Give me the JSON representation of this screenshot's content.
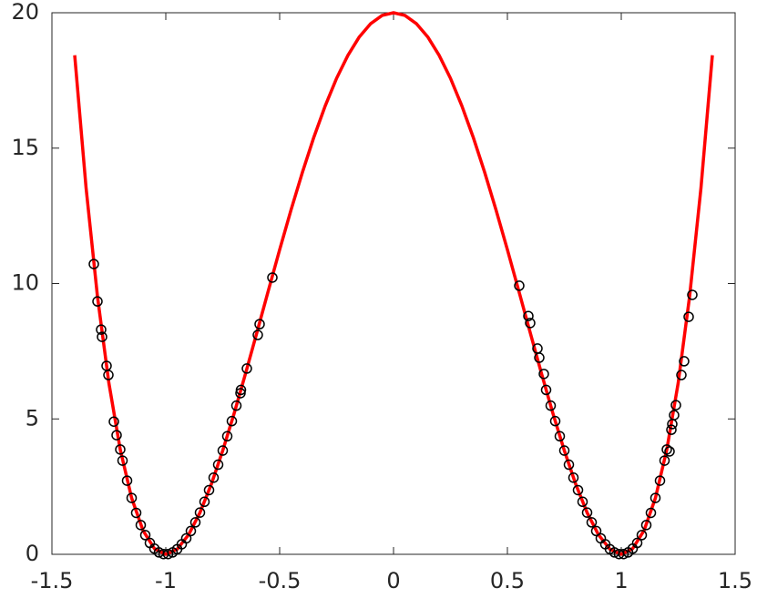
{
  "chart_data": {
    "type": "line",
    "xlim": [
      -1.5,
      1.5
    ],
    "xticks": [
      -1.5,
      -1,
      -0.5,
      0,
      0.5,
      1,
      1.5
    ],
    "ylim": [
      0,
      20
    ],
    "yticks": [
      0,
      5,
      10,
      15,
      20
    ],
    "grid": false,
    "series": [
      {
        "type": "line",
        "color": "#ff0000",
        "x": [
          -1.4,
          -1.35,
          -1.3,
          -1.25,
          -1.2,
          -1.15,
          -1.1,
          -1.05,
          -1,
          -0.95,
          -0.9,
          -0.85,
          -0.8,
          -0.75,
          -0.7,
          -0.65,
          -0.6,
          -0.55,
          -0.5,
          -0.45,
          -0.4,
          -0.35,
          -0.3,
          -0.25,
          -0.2,
          -0.15,
          -0.1,
          -0.05,
          0,
          0.05,
          0.1,
          0.15,
          0.2,
          0.25,
          0.3,
          0.35,
          0.4,
          0.45,
          0.5,
          0.55,
          0.6,
          0.65,
          0.7,
          0.75,
          0.8,
          0.85,
          0.9,
          0.95,
          1,
          1.05,
          1.1,
          1.15,
          1.2,
          1.25,
          1.3,
          1.35,
          1.4
        ],
        "values": [
          18.43,
          13.53,
          9.52,
          6.33,
          3.87,
          2.08,
          0.88,
          0.21,
          0,
          0.19,
          0.72,
          1.54,
          2.59,
          3.83,
          5.2,
          6.67,
          8.19,
          9.73,
          11.25,
          12.72,
          14.11,
          15.4,
          16.56,
          17.58,
          18.43,
          19.11,
          19.6,
          19.9,
          20,
          19.9,
          19.6,
          19.11,
          18.43,
          17.58,
          16.56,
          15.4,
          14.11,
          12.72,
          11.25,
          9.73,
          8.19,
          6.67,
          5.2,
          3.83,
          2.59,
          1.54,
          0.72,
          0.19,
          0,
          0.21,
          0.88,
          2.08,
          3.87,
          6.33,
          9.52,
          13.53,
          18.43
        ]
      },
      {
        "type": "scatter",
        "color": "#000000",
        "x": [
          0.67,
          0.69,
          0.71,
          0.73,
          0.75,
          0.77,
          0.79,
          0.81,
          0.83,
          0.85,
          0.87,
          0.89,
          0.91,
          0.93,
          0.95,
          0.97,
          0.99,
          1.01,
          1.03,
          1.05,
          1.07,
          1.09,
          1.11,
          1.13,
          1.15,
          1.17,
          1.19,
          1.2,
          -0.67,
          -0.69,
          -0.71,
          -0.73,
          -0.75,
          -0.77,
          -0.79,
          -0.81,
          -0.83,
          -0.85,
          -0.87,
          -0.89,
          -0.91,
          -0.93,
          -0.95,
          -0.97,
          -0.99,
          -1.01,
          -1.03,
          -1.05,
          -1.07,
          -1.09,
          -1.11,
          -1.13,
          -1.15,
          -1.17,
          -1.19,
          -1.2,
          -1.316,
          -1.3,
          -1.284,
          -1.28,
          -1.26,
          -1.252,
          -1.228,
          -1.216,
          -0.532,
          -0.588,
          -0.596,
          -0.644,
          -0.672,
          0.552,
          0.592,
          0.6,
          0.632,
          0.64,
          0.66,
          1.312,
          1.296,
          1.276,
          1.264,
          1.24,
          1.232,
          1.224,
          1.22,
          1.212
        ],
        "values": [
          6.07,
          5.49,
          4.92,
          4.36,
          3.83,
          3.31,
          2.83,
          2.37,
          1.94,
          1.54,
          1.18,
          0.86,
          0.59,
          0.37,
          0.19,
          0.07,
          0.01,
          0.01,
          0.07,
          0.21,
          0.42,
          0.71,
          1.08,
          1.53,
          2.08,
          2.72,
          3.46,
          3.87,
          6.07,
          5.49,
          4.92,
          4.36,
          3.83,
          3.31,
          2.83,
          2.37,
          1.94,
          1.54,
          1.18,
          0.86,
          0.59,
          0.37,
          0.19,
          0.07,
          0.01,
          0.01,
          0.07,
          0.21,
          0.42,
          0.71,
          1.08,
          1.53,
          2.08,
          2.72,
          3.46,
          3.87,
          10.72,
          9.34,
          8.3,
          8.03,
          6.96,
          6.62,
          4.9,
          4.4,
          10.22,
          8.5,
          8.1,
          6.86,
          5.95,
          9.92,
          8.8,
          8.54,
          7.6,
          7.26,
          6.66,
          9.58,
          8.77,
          7.13,
          6.62,
          5.51,
          5.14,
          4.81,
          4.6,
          3.8
        ]
      }
    ]
  }
}
